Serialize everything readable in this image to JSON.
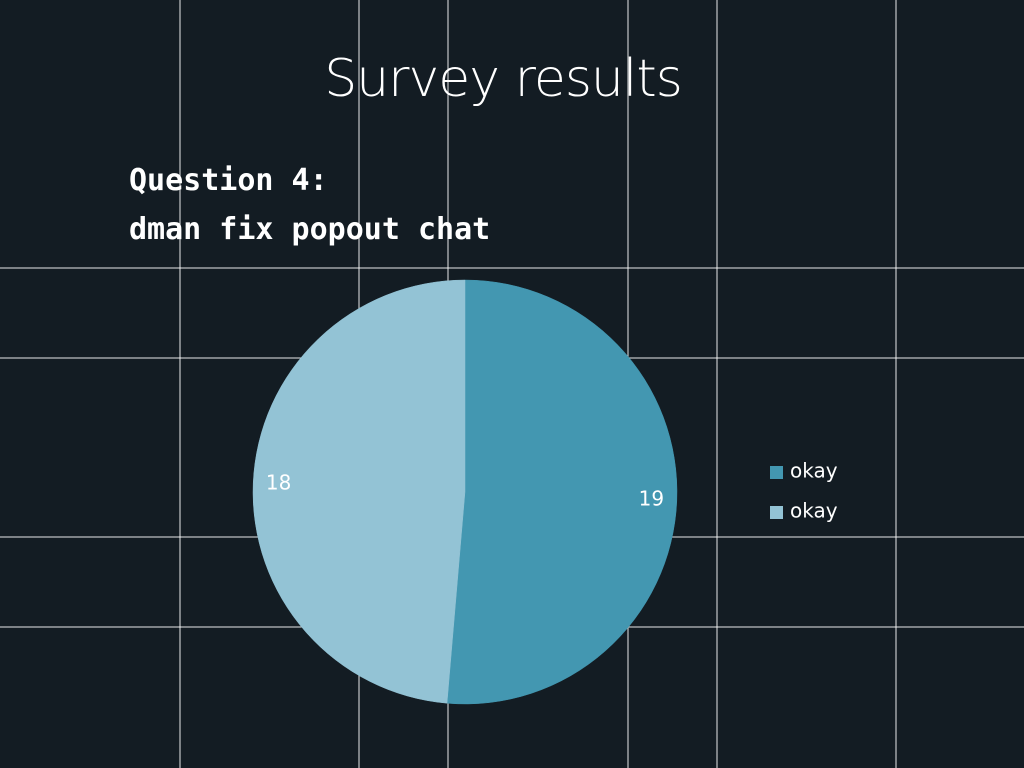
{
  "chart_data": {
    "type": "pie",
    "title": "Survey results",
    "subtitle": [
      "Question 4:",
      "dman fix popout chat"
    ],
    "categories": [
      "okay",
      "okay"
    ],
    "values": [
      19,
      18
    ],
    "colors": [
      "#4397b1",
      "#93c3d5"
    ],
    "legend": "right"
  }
}
